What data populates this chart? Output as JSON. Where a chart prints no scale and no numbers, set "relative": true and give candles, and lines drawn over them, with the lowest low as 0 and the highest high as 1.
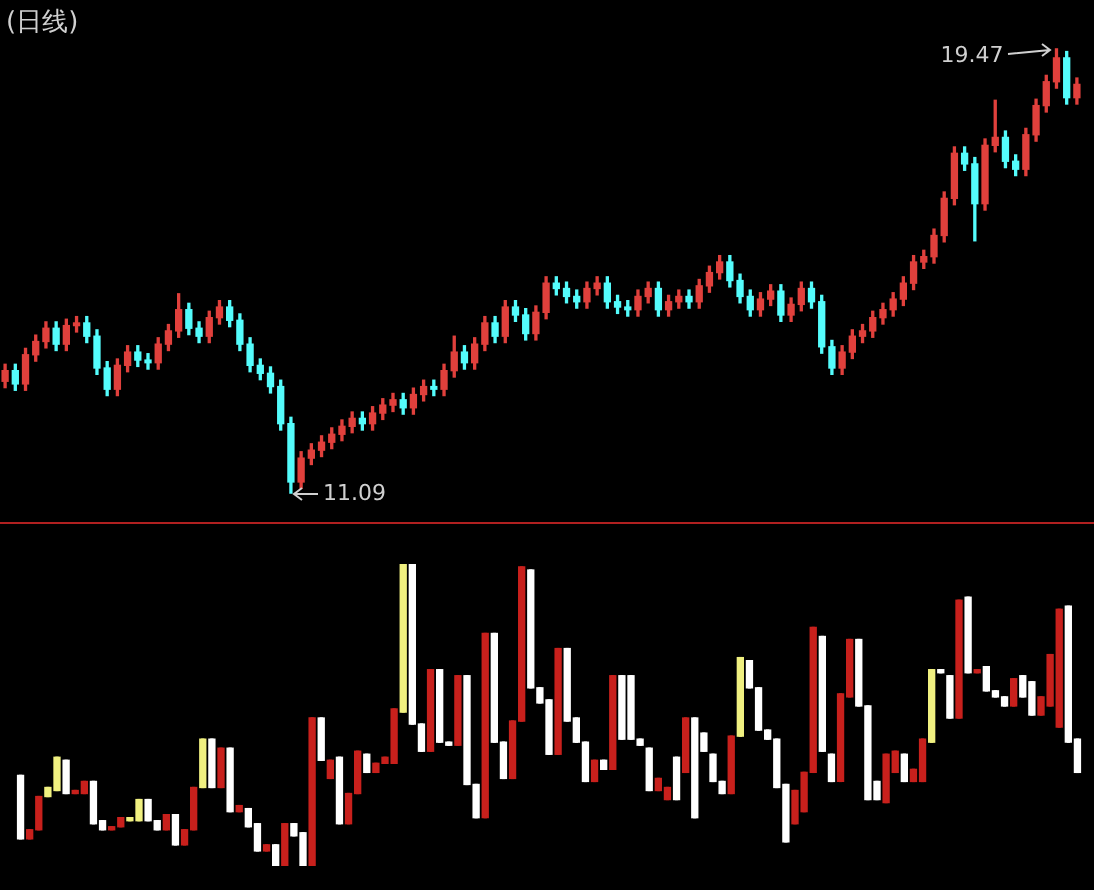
{
  "chart_data": [
    {
      "type": "candlestick",
      "title": "(日线)",
      "tick_labels": false,
      "categories": [
        null,
        null,
        null,
        null,
        null,
        null,
        null,
        null,
        null,
        null,
        null,
        null,
        null,
        null,
        null,
        null,
        null,
        null,
        null,
        null,
        null,
        null,
        null,
        null,
        null,
        null,
        null,
        null,
        null,
        null,
        null,
        null,
        null,
        null,
        null,
        null,
        null,
        null,
        null,
        null,
        null,
        null,
        null,
        null,
        null,
        null,
        null,
        null,
        null,
        null,
        null,
        null,
        null,
        null,
        null,
        null,
        null,
        null,
        null,
        null,
        null,
        null,
        null,
        null,
        null,
        null,
        null,
        null,
        null,
        null,
        null,
        null,
        null,
        null,
        null,
        null,
        null,
        null,
        null,
        null,
        null,
        null,
        null,
        null,
        null,
        null,
        null,
        null,
        null,
        null,
        null,
        null,
        null,
        null,
        null,
        null,
        null,
        null,
        null,
        null,
        null,
        null,
        null,
        null,
        null,
        null
      ],
      "ohlc": [
        [
          13.2,
          13.52,
          13.08,
          13.4
        ],
        [
          13.4,
          13.52,
          13.03,
          13.15
        ],
        [
          13.15,
          13.82,
          13.03,
          13.7
        ],
        [
          13.7,
          14.07,
          13.58,
          13.95
        ],
        [
          13.95,
          14.32,
          13.83,
          14.2
        ],
        [
          14.2,
          14.32,
          13.78,
          13.9
        ],
        [
          13.9,
          14.37,
          13.78,
          14.25
        ],
        [
          14.25,
          14.42,
          14.13,
          14.3
        ],
        [
          14.3,
          14.42,
          13.93,
          14.05
        ],
        [
          14.05,
          14.17,
          13.33,
          13.45
        ],
        [
          13.45,
          13.57,
          12.93,
          13.05
        ],
        [
          13.05,
          13.62,
          12.93,
          13.5
        ],
        [
          13.5,
          13.87,
          13.38,
          13.75
        ],
        [
          13.75,
          13.87,
          13.48,
          13.6
        ],
        [
          13.6,
          13.72,
          13.43,
          13.55
        ],
        [
          13.55,
          14.02,
          13.43,
          13.9
        ],
        [
          13.9,
          14.27,
          13.78,
          14.15
        ],
        [
          14.15,
          14.85,
          14.03,
          14.55
        ],
        [
          14.55,
          14.67,
          14.08,
          14.2
        ],
        [
          14.2,
          14.32,
          13.93,
          14.05
        ],
        [
          14.05,
          14.52,
          13.93,
          14.4
        ],
        [
          14.4,
          14.72,
          14.28,
          14.6
        ],
        [
          14.6,
          14.72,
          14.23,
          14.35
        ],
        [
          14.35,
          14.47,
          13.78,
          13.9
        ],
        [
          13.9,
          14.02,
          13.38,
          13.5
        ],
        [
          13.5,
          13.62,
          13.23,
          13.35
        ],
        [
          13.35,
          13.47,
          12.98,
          13.1
        ],
        [
          13.1,
          13.22,
          12.28,
          12.4
        ],
        [
          12.4,
          12.52,
          11.09,
          11.3
        ],
        [
          11.3,
          11.87,
          11.18,
          11.75
        ],
        [
          11.75,
          12.02,
          11.63,
          11.9
        ],
        [
          11.9,
          12.17,
          11.78,
          12.05
        ],
        [
          12.05,
          12.32,
          11.93,
          12.2
        ],
        [
          12.2,
          12.47,
          12.08,
          12.35
        ],
        [
          12.35,
          12.62,
          12.23,
          12.5
        ],
        [
          12.5,
          12.62,
          12.28,
          12.4
        ],
        [
          12.4,
          12.72,
          12.28,
          12.6
        ],
        [
          12.6,
          12.87,
          12.48,
          12.75
        ],
        [
          12.75,
          12.97,
          12.63,
          12.85
        ],
        [
          12.85,
          12.97,
          12.58,
          12.7
        ],
        [
          12.7,
          13.07,
          12.58,
          12.95
        ],
        [
          12.95,
          13.22,
          12.83,
          13.1
        ],
        [
          13.1,
          13.22,
          12.93,
          13.05
        ],
        [
          13.05,
          13.52,
          12.93,
          13.4
        ],
        [
          13.4,
          14.05,
          13.28,
          13.75
        ],
        [
          13.75,
          13.87,
          13.43,
          13.55
        ],
        [
          13.55,
          14.02,
          13.43,
          13.9
        ],
        [
          13.9,
          14.42,
          13.78,
          14.3
        ],
        [
          14.3,
          14.42,
          13.93,
          14.05
        ],
        [
          14.05,
          14.72,
          13.93,
          14.6
        ],
        [
          14.6,
          14.72,
          14.33,
          14.45
        ],
        [
          14.45,
          14.57,
          13.98,
          14.1
        ],
        [
          14.1,
          14.62,
          13.98,
          14.5
        ],
        [
          14.5,
          15.17,
          14.38,
          15.05
        ],
        [
          15.05,
          15.17,
          14.83,
          14.95
        ],
        [
          14.95,
          15.07,
          14.68,
          14.8
        ],
        [
          14.8,
          14.92,
          14.58,
          14.7
        ],
        [
          14.7,
          15.07,
          14.58,
          14.95
        ],
        [
          14.95,
          15.17,
          14.83,
          15.05
        ],
        [
          15.05,
          15.17,
          14.58,
          14.7
        ],
        [
          14.7,
          14.82,
          14.48,
          14.6
        ],
        [
          14.6,
          14.72,
          14.43,
          14.55
        ],
        [
          14.55,
          14.92,
          14.43,
          14.8
        ],
        [
          14.8,
          15.07,
          14.68,
          14.95
        ],
        [
          14.95,
          15.07,
          14.43,
          14.55
        ],
        [
          14.55,
          14.82,
          14.43,
          14.7
        ],
        [
          14.7,
          14.92,
          14.58,
          14.8
        ],
        [
          14.8,
          14.92,
          14.58,
          14.7
        ],
        [
          14.7,
          15.12,
          14.58,
          15.0
        ],
        [
          15.0,
          15.37,
          14.88,
          15.25
        ],
        [
          15.25,
          15.57,
          15.13,
          15.45
        ],
        [
          15.45,
          15.57,
          14.98,
          15.1
        ],
        [
          15.1,
          15.22,
          14.68,
          14.8
        ],
        [
          14.8,
          14.92,
          14.43,
          14.55
        ],
        [
          14.55,
          14.87,
          14.43,
          14.75
        ],
        [
          14.75,
          15.02,
          14.63,
          14.9
        ],
        [
          14.9,
          15.02,
          14.33,
          14.45
        ],
        [
          14.45,
          14.77,
          14.33,
          14.65
        ],
        [
          14.65,
          15.07,
          14.53,
          14.95
        ],
        [
          14.95,
          15.07,
          14.58,
          14.7
        ],
        [
          14.7,
          14.82,
          13.73,
          13.85
        ],
        [
          13.85,
          13.97,
          13.33,
          13.45
        ],
        [
          13.45,
          13.87,
          13.33,
          13.75
        ],
        [
          13.75,
          14.17,
          13.63,
          14.05
        ],
        [
          14.05,
          14.27,
          13.93,
          14.15
        ],
        [
          14.15,
          14.52,
          14.03,
          14.4
        ],
        [
          14.4,
          14.67,
          14.28,
          14.55
        ],
        [
          14.55,
          14.87,
          14.43,
          14.75
        ],
        [
          14.75,
          15.17,
          14.63,
          15.05
        ],
        [
          15.05,
          15.57,
          14.93,
          15.45
        ],
        [
          15.45,
          15.67,
          15.33,
          15.55
        ],
        [
          15.55,
          16.07,
          15.43,
          15.95
        ],
        [
          15.95,
          16.77,
          15.83,
          16.65
        ],
        [
          16.65,
          17.62,
          16.53,
          17.5
        ],
        [
          17.5,
          17.62,
          17.18,
          17.3
        ],
        [
          17.3,
          17.42,
          15.85,
          16.55
        ],
        [
          16.55,
          17.77,
          16.43,
          17.65
        ],
        [
          17.65,
          18.5,
          17.53,
          17.8
        ],
        [
          17.8,
          17.92,
          17.23,
          17.35
        ],
        [
          17.35,
          17.47,
          17.08,
          17.2
        ],
        [
          17.2,
          17.97,
          17.08,
          17.85
        ],
        [
          17.85,
          18.52,
          17.73,
          18.4
        ],
        [
          18.4,
          18.97,
          18.28,
          18.85
        ],
        [
          18.85,
          19.47,
          18.73,
          19.3
        ],
        [
          19.3,
          19.42,
          18.43,
          18.55
        ],
        [
          18.55,
          18.92,
          18.43,
          18.8
        ]
      ],
      "colors": [
        "#e0403c",
        "#54fcfc",
        "#e0403c",
        "#e0403c",
        "#e0403c",
        "#54fcfc",
        "#e0403c",
        "#e0403c",
        "#54fcfc",
        "#54fcfc",
        "#54fcfc",
        "#e0403c",
        "#e0403c",
        "#54fcfc",
        "#54fcfc",
        "#e0403c",
        "#e0403c",
        "#e0403c",
        "#54fcfc",
        "#54fcfc",
        "#e0403c",
        "#e0403c",
        "#54fcfc",
        "#54fcfc",
        "#54fcfc",
        "#54fcfc",
        "#54fcfc",
        "#54fcfc",
        "#54fcfc",
        "#e0403c",
        "#e0403c",
        "#e0403c",
        "#e0403c",
        "#e0403c",
        "#e0403c",
        "#54fcfc",
        "#e0403c",
        "#e0403c",
        "#e0403c",
        "#54fcfc",
        "#e0403c",
        "#e0403c",
        "#54fcfc",
        "#e0403c",
        "#e0403c",
        "#54fcfc",
        "#e0403c",
        "#e0403c",
        "#54fcfc",
        "#e0403c",
        "#54fcfc",
        "#54fcfc",
        "#e0403c",
        "#e0403c",
        "#54fcfc",
        "#54fcfc",
        "#54fcfc",
        "#e0403c",
        "#e0403c",
        "#54fcfc",
        "#54fcfc",
        "#54fcfc",
        "#e0403c",
        "#e0403c",
        "#54fcfc",
        "#e0403c",
        "#e0403c",
        "#54fcfc",
        "#e0403c",
        "#e0403c",
        "#e0403c",
        "#54fcfc",
        "#54fcfc",
        "#54fcfc",
        "#e0403c",
        "#e0403c",
        "#54fcfc",
        "#e0403c",
        "#e0403c",
        "#54fcfc",
        "#54fcfc",
        "#54fcfc",
        "#e0403c",
        "#e0403c",
        "#e0403c",
        "#e0403c",
        "#e0403c",
        "#e0403c",
        "#e0403c",
        "#e0403c",
        "#e0403c",
        "#e0403c",
        "#e0403c",
        "#e0403c",
        "#54fcfc",
        "#54fcfc",
        "#e0403c",
        "#e0403c",
        "#54fcfc",
        "#54fcfc",
        "#e0403c",
        "#e0403c",
        "#e0403c",
        "#e0403c",
        "#54fcfc",
        "#e0403c"
      ],
      "annotations": [
        "19.47",
        "11.09"
      ]
    },
    {
      "type": "candlestick",
      "relative": true,
      "tick_labels": false,
      "categories": [
        null,
        null,
        null,
        null,
        null,
        null,
        null,
        null,
        null,
        null,
        null,
        null,
        null,
        null,
        null,
        null,
        null,
        null,
        null,
        null,
        null,
        null,
        null,
        null,
        null,
        null,
        null,
        null,
        null,
        null,
        null,
        null,
        null,
        null,
        null,
        null,
        null,
        null,
        null,
        null,
        null,
        null,
        null,
        null,
        null,
        null,
        null,
        null,
        null,
        null,
        null,
        null,
        null,
        null,
        null,
        null,
        null,
        null,
        null,
        null,
        null,
        null,
        null,
        null,
        null,
        null,
        null,
        null,
        null,
        null,
        null,
        null,
        null,
        null,
        null,
        null,
        null,
        null,
        null,
        null,
        null,
        null,
        null,
        null,
        null,
        null,
        null,
        null,
        null,
        null,
        null,
        null,
        null,
        null,
        null,
        null,
        null,
        null,
        null,
        null,
        null,
        null,
        null,
        null,
        null,
        null,
        null,
        null,
        null,
        null,
        null,
        null,
        null,
        null,
        null,
        null,
        null
      ],
      "ohlc": [
        [
          0.3,
          0.3,
          0.09,
          0.09
        ],
        [
          0.09,
          0.12,
          0.09,
          0.12
        ],
        [
          0.12,
          0.23,
          0.12,
          0.23
        ],
        [
          0.26,
          0.26,
          0.23,
          0.23
        ],
        [
          0.36,
          0.36,
          0.25,
          0.25
        ],
        [
          0.35,
          0.35,
          0.24,
          0.24
        ],
        [
          0.24,
          0.25,
          0.24,
          0.25
        ],
        [
          0.24,
          0.28,
          0.24,
          0.28
        ],
        [
          0.28,
          0.28,
          0.14,
          0.14
        ],
        [
          0.15,
          0.15,
          0.12,
          0.12
        ],
        [
          0.12,
          0.13,
          0.12,
          0.13
        ],
        [
          0.13,
          0.16,
          0.13,
          0.16
        ],
        [
          0.16,
          0.16,
          0.15,
          0.15
        ],
        [
          0.22,
          0.22,
          0.15,
          0.15
        ],
        [
          0.22,
          0.22,
          0.15,
          0.15
        ],
        [
          0.15,
          0.15,
          0.12,
          0.12
        ],
        [
          0.12,
          0.17,
          0.12,
          0.17
        ],
        [
          0.17,
          0.17,
          0.07,
          0.07
        ],
        [
          0.07,
          0.12,
          0.07,
          0.12
        ],
        [
          0.12,
          0.26,
          0.12,
          0.26
        ],
        [
          0.42,
          0.42,
          0.26,
          0.26
        ],
        [
          0.42,
          0.42,
          0.26,
          0.26
        ],
        [
          0.26,
          0.39,
          0.26,
          0.39
        ],
        [
          0.39,
          0.39,
          0.18,
          0.18
        ],
        [
          0.18,
          0.2,
          0.18,
          0.2
        ],
        [
          0.19,
          0.19,
          0.13,
          0.13
        ],
        [
          0.14,
          0.14,
          0.05,
          0.05
        ],
        [
          0.05,
          0.07,
          0.05,
          0.07
        ],
        [
          0.07,
          0.07,
          0,
          0
        ],
        [
          0,
          0.14,
          0,
          0.14
        ],
        [
          0.14,
          0.14,
          0.1,
          0.1
        ],
        [
          0.11,
          0.11,
          0,
          0
        ],
        [
          0,
          0.49,
          0,
          0.49
        ],
        [
          0.49,
          0.49,
          0.35,
          0.35
        ],
        [
          0.29,
          0.35,
          0.29,
          0.35
        ],
        [
          0.36,
          0.36,
          0.14,
          0.14
        ],
        [
          0.14,
          0.24,
          0.14,
          0.24
        ],
        [
          0.24,
          0.38,
          0.24,
          0.38
        ],
        [
          0.37,
          0.37,
          0.31,
          0.31
        ],
        [
          0.31,
          0.34,
          0.31,
          0.34
        ],
        [
          0.34,
          0.36,
          0.34,
          0.36
        ],
        [
          0.34,
          0.52,
          0.34,
          0.52
        ],
        [
          1.0,
          1.0,
          0.51,
          0.51
        ],
        [
          1.0,
          1.0,
          0.47,
          0.47
        ],
        [
          0.47,
          0.47,
          0.38,
          0.38
        ],
        [
          0.38,
          0.65,
          0.38,
          0.65
        ],
        [
          0.65,
          0.65,
          0.41,
          0.41
        ],
        [
          0.41,
          0.41,
          0.4,
          0.4
        ],
        [
          0.4,
          0.63,
          0.4,
          0.63
        ],
        [
          0.63,
          0.63,
          0.27,
          0.27
        ],
        [
          0.27,
          0.27,
          0.16,
          0.16
        ],
        [
          0.16,
          0.77,
          0.16,
          0.77
        ],
        [
          0.77,
          0.77,
          0.41,
          0.41
        ],
        [
          0.41,
          0.41,
          0.29,
          0.29
        ],
        [
          0.29,
          0.48,
          0.29,
          0.48
        ],
        [
          0.48,
          0.99,
          0.48,
          0.99
        ],
        [
          0.98,
          0.98,
          0.59,
          0.59
        ],
        [
          0.59,
          0.59,
          0.54,
          0.54
        ],
        [
          0.55,
          0.55,
          0.37,
          0.37
        ],
        [
          0.37,
          0.72,
          0.37,
          0.72
        ],
        [
          0.72,
          0.72,
          0.48,
          0.48
        ],
        [
          0.49,
          0.49,
          0.41,
          0.41
        ],
        [
          0.41,
          0.41,
          0.28,
          0.28
        ],
        [
          0.28,
          0.35,
          0.28,
          0.35
        ],
        [
          0.35,
          0.35,
          0.32,
          0.32
        ],
        [
          0.32,
          0.63,
          0.32,
          0.63
        ],
        [
          0.63,
          0.63,
          0.42,
          0.42
        ],
        [
          0.63,
          0.63,
          0.42,
          0.42
        ],
        [
          0.42,
          0.42,
          0.4,
          0.4
        ],
        [
          0.39,
          0.39,
          0.25,
          0.25
        ],
        [
          0.25,
          0.29,
          0.25,
          0.29
        ],
        [
          0.22,
          0.26,
          0.22,
          0.26
        ],
        [
          0.36,
          0.36,
          0.22,
          0.22
        ],
        [
          0.31,
          0.49,
          0.31,
          0.49
        ],
        [
          0.49,
          0.49,
          0.16,
          0.16
        ],
        [
          0.44,
          0.44,
          0.38,
          0.38
        ],
        [
          0.37,
          0.37,
          0.28,
          0.28
        ],
        [
          0.28,
          0.28,
          0.24,
          0.24
        ],
        [
          0.24,
          0.43,
          0.24,
          0.43
        ],
        [
          0.69,
          0.69,
          0.43,
          0.43
        ],
        [
          0.68,
          0.68,
          0.59,
          0.59
        ],
        [
          0.59,
          0.59,
          0.45,
          0.45
        ],
        [
          0.45,
          0.45,
          0.42,
          0.42
        ],
        [
          0.42,
          0.42,
          0.26,
          0.26
        ],
        [
          0.27,
          0.27,
          0.08,
          0.08
        ],
        [
          0.14,
          0.25,
          0.14,
          0.25
        ],
        [
          0.18,
          0.31,
          0.18,
          0.31
        ],
        [
          0.31,
          0.79,
          0.31,
          0.79
        ],
        [
          0.76,
          0.76,
          0.38,
          0.38
        ],
        [
          0.37,
          0.37,
          0.28,
          0.28
        ],
        [
          0.28,
          0.57,
          0.28,
          0.57
        ],
        [
          0.56,
          0.75,
          0.56,
          0.75
        ],
        [
          0.75,
          0.75,
          0.53,
          0.53
        ],
        [
          0.53,
          0.53,
          0.22,
          0.22
        ],
        [
          0.28,
          0.28,
          0.22,
          0.22
        ],
        [
          0.21,
          0.37,
          0.21,
          0.37
        ],
        [
          0.31,
          0.38,
          0.31,
          0.38
        ],
        [
          0.37,
          0.37,
          0.28,
          0.28
        ],
        [
          0.28,
          0.32,
          0.28,
          0.32
        ],
        [
          0.28,
          0.42,
          0.28,
          0.42
        ],
        [
          0.65,
          0.65,
          0.41,
          0.41
        ],
        [
          0.65,
          0.65,
          0.64,
          0.64
        ],
        [
          0.63,
          0.63,
          0.49,
          0.49
        ],
        [
          0.49,
          0.88,
          0.49,
          0.88
        ],
        [
          0.89,
          0.89,
          0.64,
          0.64
        ],
        [
          0.64,
          0.65,
          0.64,
          0.65
        ],
        [
          0.66,
          0.66,
          0.58,
          0.58
        ],
        [
          0.58,
          0.58,
          0.56,
          0.56
        ],
        [
          0.56,
          0.56,
          0.53,
          0.53
        ],
        [
          0.53,
          0.62,
          0.53,
          0.62
        ],
        [
          0.63,
          0.63,
          0.56,
          0.56
        ],
        [
          0.61,
          0.61,
          0.5,
          0.5
        ],
        [
          0.5,
          0.56,
          0.5,
          0.56
        ],
        [
          0.53,
          0.7,
          0.53,
          0.7
        ],
        [
          0.46,
          0.85,
          0.46,
          0.85
        ],
        [
          0.86,
          0.86,
          0.41,
          0.41
        ],
        [
          0.42,
          0.42,
          0.31,
          0.31
        ]
      ],
      "colors": [
        "#ffffff",
        "#c8201c",
        "#c8201c",
        "#f0f080",
        "#f0f080",
        "#ffffff",
        "#c8201c",
        "#c8201c",
        "#ffffff",
        "#ffffff",
        "#c8201c",
        "#c8201c",
        "#f0f080",
        "#f0f080",
        "#ffffff",
        "#ffffff",
        "#c8201c",
        "#ffffff",
        "#c8201c",
        "#c8201c",
        "#f0f080",
        "#ffffff",
        "#c8201c",
        "#ffffff",
        "#c8201c",
        "#ffffff",
        "#ffffff",
        "#c8201c",
        "#ffffff",
        "#c8201c",
        "#ffffff",
        "#ffffff",
        "#c8201c",
        "#ffffff",
        "#c8201c",
        "#ffffff",
        "#c8201c",
        "#c8201c",
        "#ffffff",
        "#c8201c",
        "#c8201c",
        "#c8201c",
        "#f0f080",
        "#ffffff",
        "#ffffff",
        "#c8201c",
        "#ffffff",
        "#ffffff",
        "#c8201c",
        "#ffffff",
        "#ffffff",
        "#c8201c",
        "#ffffff",
        "#ffffff",
        "#c8201c",
        "#c8201c",
        "#ffffff",
        "#ffffff",
        "#ffffff",
        "#c8201c",
        "#ffffff",
        "#ffffff",
        "#ffffff",
        "#c8201c",
        "#ffffff",
        "#c8201c",
        "#ffffff",
        "#ffffff",
        "#ffffff",
        "#ffffff",
        "#c8201c",
        "#c8201c",
        "#ffffff",
        "#c8201c",
        "#ffffff",
        "#ffffff",
        "#ffffff",
        "#ffffff",
        "#c8201c",
        "#f0f080",
        "#ffffff",
        "#ffffff",
        "#ffffff",
        "#ffffff",
        "#ffffff",
        "#c8201c",
        "#c8201c",
        "#c8201c",
        "#ffffff",
        "#ffffff",
        "#c8201c",
        "#c8201c",
        "#ffffff",
        "#ffffff",
        "#ffffff",
        "#c8201c",
        "#c8201c",
        "#ffffff",
        "#c8201c",
        "#c8201c",
        "#f0f080",
        "#ffffff",
        "#ffffff",
        "#c8201c",
        "#ffffff",
        "#c8201c",
        "#ffffff",
        "#ffffff",
        "#ffffff",
        "#c8201c",
        "#ffffff",
        "#ffffff",
        "#c8201c",
        "#c8201c",
        "#c8201c",
        "#ffffff",
        "#ffffff"
      ]
    }
  ]
}
